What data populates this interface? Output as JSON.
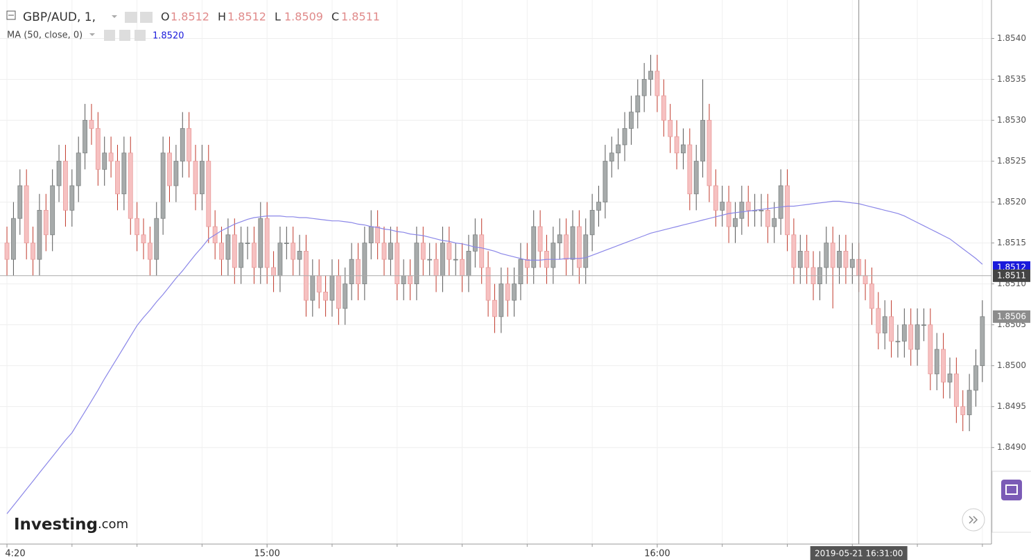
{
  "chart_data": {
    "type": "candlestick",
    "symbol": "GBP/AUD, 1,",
    "ohlc_legend": [
      {
        "key": "O",
        "value": 1.8512
      },
      {
        "key": "H",
        "value": 1.8512
      },
      {
        "key": "L",
        "value": 1.8509
      },
      {
        "key": "C",
        "value": 1.8511
      }
    ],
    "up_color": "#a7abab",
    "down_color": "#f6c1c1",
    "open": [
      1.8515,
      1.8513,
      1.8518,
      1.8522,
      1.8515,
      1.8513,
      1.8519,
      1.8516,
      1.8522,
      1.8525,
      1.8519,
      1.8522,
      1.8526,
      1.853,
      1.8529,
      1.8524,
      1.8526,
      1.8525,
      1.8521,
      1.8526,
      1.8518,
      1.8516,
      1.8515,
      1.8513,
      1.8518,
      1.8526,
      1.8522,
      1.8525,
      1.8529,
      1.8525,
      1.8521,
      1.8525,
      1.8517,
      1.8515,
      1.8513,
      1.8516,
      1.8512,
      1.8515,
      1.8515,
      1.8512,
      1.8518,
      1.8512,
      1.8511,
      1.8515,
      1.8515,
      1.8513,
      1.8514,
      1.8508,
      1.8511,
      1.8509,
      1.8508,
      1.8511,
      1.8507,
      1.851,
      1.8513,
      1.851,
      1.8515,
      1.8517,
      1.8515,
      1.8513,
      1.8515,
      1.851,
      1.8511,
      1.851,
      1.8515,
      1.8513,
      1.8513,
      1.8511,
      1.8515,
      1.8513,
      1.8513,
      1.8511,
      1.8514,
      1.8516,
      1.8512,
      1.8508,
      1.8506,
      1.851,
      1.8508,
      1.851,
      1.8513,
      1.8512,
      1.8517,
      1.8514,
      1.8512,
      1.8515,
      1.8516,
      1.8513,
      1.8517,
      1.8512,
      1.8516,
      1.8519,
      1.852,
      1.8525,
      1.8526,
      1.8527,
      1.8529,
      1.8531,
      1.8533,
      1.8535,
      1.8536,
      1.8533,
      1.853,
      1.8528,
      1.8526,
      1.8527,
      1.8521,
      1.8525,
      1.853,
      1.8522,
      1.8519,
      1.852,
      1.8517,
      1.8518,
      1.852,
      1.8519,
      1.8519,
      1.8519,
      1.8517,
      1.8518,
      1.8522,
      1.8516,
      1.8512,
      1.8514,
      1.8512,
      1.851,
      1.8512,
      1.8515,
      1.8512,
      1.8514,
      1.8512,
      1.8513,
      1.8511,
      1.851,
      1.8507,
      1.8504,
      1.8506,
      1.8503,
      1.8503,
      1.8505,
      1.8502,
      1.8505,
      1.8505,
      1.8499,
      1.8502,
      1.8498,
      1.8499,
      1.8495,
      1.8494,
      1.8497,
      1.85
    ],
    "high": [
      1.8517,
      1.852,
      1.8524,
      1.8524,
      1.8517,
      1.8521,
      1.8521,
      1.8524,
      1.8527,
      1.8527,
      1.8524,
      1.8528,
      1.8532,
      1.8532,
      1.8531,
      1.8528,
      1.8528,
      1.8527,
      1.8528,
      1.8528,
      1.852,
      1.8518,
      1.8517,
      1.852,
      1.8528,
      1.8528,
      1.8527,
      1.8531,
      1.8531,
      1.8527,
      1.8527,
      1.8527,
      1.8519,
      1.8517,
      1.8518,
      1.8518,
      1.8517,
      1.8517,
      1.8517,
      1.852,
      1.852,
      1.8514,
      1.8517,
      1.8517,
      1.8517,
      1.8516,
      1.8516,
      1.8513,
      1.8513,
      1.8511,
      1.8513,
      1.8513,
      1.8512,
      1.8515,
      1.8515,
      1.8517,
      1.8519,
      1.8519,
      1.8517,
      1.8517,
      1.8517,
      1.8513,
      1.8513,
      1.8517,
      1.8517,
      1.8515,
      1.8515,
      1.8517,
      1.8517,
      1.8515,
      1.8515,
      1.8516,
      1.8518,
      1.8518,
      1.8514,
      1.851,
      1.8512,
      1.8512,
      1.8512,
      1.8515,
      1.8515,
      1.8519,
      1.8519,
      1.8516,
      1.8517,
      1.8518,
      1.8518,
      1.8519,
      1.8519,
      1.8518,
      1.8521,
      1.8522,
      1.8527,
      1.8528,
      1.8529,
      1.8531,
      1.8533,
      1.8535,
      1.8537,
      1.8538,
      1.8538,
      1.8535,
      1.8532,
      1.853,
      1.8529,
      1.8529,
      1.8527,
      1.8535,
      1.8532,
      1.8524,
      1.8522,
      1.8522,
      1.852,
      1.8522,
      1.8522,
      1.8521,
      1.8521,
      1.8521,
      1.852,
      1.8524,
      1.8524,
      1.8518,
      1.8516,
      1.8516,
      1.8514,
      1.8514,
      1.8517,
      1.8517,
      1.8516,
      1.8516,
      1.8515,
      1.8515,
      1.8513,
      1.8512,
      1.8509,
      1.8508,
      1.8508,
      1.8505,
      1.8507,
      1.8507,
      1.8507,
      1.8507,
      1.8507,
      1.8504,
      1.8504,
      1.8501,
      1.8501,
      1.8497,
      1.8499,
      1.8502,
      1.8508
    ],
    "low": [
      1.8511,
      1.8511,
      1.8516,
      1.8513,
      1.8511,
      1.8511,
      1.8514,
      1.8514,
      1.852,
      1.8517,
      1.8517,
      1.852,
      1.8524,
      1.8527,
      1.8522,
      1.8522,
      1.8523,
      1.8519,
      1.8519,
      1.8516,
      1.8514,
      1.8513,
      1.8511,
      1.8511,
      1.8516,
      1.852,
      1.852,
      1.8523,
      1.8523,
      1.8519,
      1.8519,
      1.8515,
      1.8513,
      1.8511,
      1.8511,
      1.851,
      1.851,
      1.8513,
      1.851,
      1.851,
      1.851,
      1.8509,
      1.8509,
      1.8513,
      1.8511,
      1.8511,
      1.8506,
      1.8506,
      1.8507,
      1.8506,
      1.8506,
      1.8505,
      1.8505,
      1.8508,
      1.8508,
      1.8508,
      1.8513,
      1.8513,
      1.8511,
      1.8511,
      1.8508,
      1.8508,
      1.8508,
      1.8508,
      1.8511,
      1.8511,
      1.8509,
      1.8509,
      1.8511,
      1.8511,
      1.8509,
      1.8509,
      1.8512,
      1.851,
      1.8506,
      1.8504,
      1.8504,
      1.8506,
      1.8506,
      1.8508,
      1.851,
      1.851,
      1.8512,
      1.851,
      1.851,
      1.8513,
      1.8511,
      1.8511,
      1.851,
      1.851,
      1.8514,
      1.8517,
      1.8518,
      1.8523,
      1.8524,
      1.8525,
      1.8527,
      1.8529,
      1.8531,
      1.8533,
      1.8531,
      1.8528,
      1.8526,
      1.8524,
      1.8524,
      1.8519,
      1.8519,
      1.8523,
      1.852,
      1.8517,
      1.8517,
      1.8515,
      1.8515,
      1.8516,
      1.8517,
      1.8517,
      1.8517,
      1.8515,
      1.8515,
      1.8516,
      1.8514,
      1.851,
      1.851,
      1.851,
      1.8508,
      1.8508,
      1.851,
      1.8507,
      1.851,
      1.851,
      1.851,
      1.8509,
      1.8508,
      1.8505,
      1.8502,
      1.8502,
      1.8501,
      1.8501,
      1.8501,
      1.85,
      1.85,
      1.8503,
      1.8497,
      1.8497,
      1.8496,
      1.8496,
      1.8493,
      1.8492,
      1.8492,
      1.8495,
      1.8498
    ],
    "close": [
      1.8513,
      1.8518,
      1.8522,
      1.8515,
      1.8513,
      1.8519,
      1.8516,
      1.8522,
      1.8525,
      1.8519,
      1.8522,
      1.8526,
      1.853,
      1.8529,
      1.8524,
      1.8526,
      1.8525,
      1.8521,
      1.8526,
      1.8518,
      1.8516,
      1.8515,
      1.8513,
      1.8518,
      1.8526,
      1.8522,
      1.8525,
      1.8529,
      1.8525,
      1.8521,
      1.8525,
      1.8517,
      1.8515,
      1.8513,
      1.8516,
      1.8512,
      1.8515,
      1.8515,
      1.8512,
      1.8518,
      1.8512,
      1.8511,
      1.8515,
      1.8515,
      1.8513,
      1.8514,
      1.8508,
      1.8511,
      1.8509,
      1.8508,
      1.8511,
      1.8507,
      1.851,
      1.8513,
      1.851,
      1.8515,
      1.8517,
      1.8515,
      1.8513,
      1.8515,
      1.851,
      1.8511,
      1.851,
      1.8515,
      1.8513,
      1.8513,
      1.8511,
      1.8515,
      1.8513,
      1.8513,
      1.8511,
      1.8514,
      1.8516,
      1.8512,
      1.8508,
      1.8506,
      1.851,
      1.8508,
      1.851,
      1.8513,
      1.8512,
      1.8517,
      1.8514,
      1.8512,
      1.8515,
      1.8516,
      1.8513,
      1.8517,
      1.8512,
      1.8516,
      1.8519,
      1.852,
      1.8525,
      1.8526,
      1.8527,
      1.8529,
      1.8531,
      1.8533,
      1.8535,
      1.8536,
      1.8533,
      1.853,
      1.8528,
      1.8526,
      1.8527,
      1.8521,
      1.8525,
      1.853,
      1.8522,
      1.8519,
      1.852,
      1.8517,
      1.8518,
      1.852,
      1.8519,
      1.8519,
      1.8519,
      1.8517,
      1.8518,
      1.8522,
      1.8516,
      1.8512,
      1.8514,
      1.8512,
      1.851,
      1.8512,
      1.8515,
      1.8512,
      1.8514,
      1.8512,
      1.8513,
      1.8511,
      1.851,
      1.8507,
      1.8504,
      1.8506,
      1.8503,
      1.8503,
      1.8505,
      1.8502,
      1.8505,
      1.8505,
      1.8499,
      1.8502,
      1.8498,
      1.8499,
      1.8495,
      1.8494,
      1.8497,
      1.85,
      1.8506
    ],
    "ma": {
      "name": "MA (50, close, 0)",
      "value_label": "1.8520",
      "color": "#8a86e8",
      "values": [
        1.84819,
        1.84829,
        1.84839,
        1.84849,
        1.84859,
        1.84869,
        1.84879,
        1.84889,
        1.84899,
        1.84909,
        1.84918,
        1.84931,
        1.84944,
        1.84957,
        1.8497,
        1.84984,
        1.84997,
        1.8501,
        1.85023,
        1.85036,
        1.85049,
        1.85059,
        1.85068,
        1.85078,
        1.85087,
        1.85097,
        1.85107,
        1.85116,
        1.85126,
        1.85136,
        1.85145,
        1.85155,
        1.8516,
        1.85165,
        1.85169,
        1.85173,
        1.85176,
        1.85179,
        1.85181,
        1.85182,
        1.85183,
        1.85183,
        1.85183,
        1.85182,
        1.85182,
        1.85181,
        1.85181,
        1.8518,
        1.85179,
        1.85178,
        1.85177,
        1.85177,
        1.85176,
        1.85175,
        1.85173,
        1.85172,
        1.8517,
        1.85169,
        1.85167,
        1.85166,
        1.85164,
        1.85163,
        1.85161,
        1.8516,
        1.85159,
        1.85157,
        1.85155,
        1.85153,
        1.85152,
        1.8515,
        1.85149,
        1.85147,
        1.85145,
        1.85144,
        1.85142,
        1.8514,
        1.85137,
        1.85135,
        1.85133,
        1.85131,
        1.85129,
        1.85129,
        1.85129,
        1.8513,
        1.8513,
        1.8513,
        1.85131,
        1.85131,
        1.85131,
        1.85132,
        1.85135,
        1.85138,
        1.85141,
        1.85144,
        1.85147,
        1.8515,
        1.85153,
        1.85156,
        1.85159,
        1.85162,
        1.85164,
        1.85166,
        1.85168,
        1.8517,
        1.85172,
        1.85174,
        1.85176,
        1.85178,
        1.8518,
        1.85182,
        1.85184,
        1.85186,
        1.85187,
        1.85188,
        1.85189,
        1.8519,
        1.85191,
        1.85192,
        1.85193,
        1.85194,
        1.85195,
        1.85195,
        1.85196,
        1.85197,
        1.85198,
        1.85199,
        1.852,
        1.85201,
        1.85201,
        1.852,
        1.85199,
        1.85198,
        1.85196,
        1.85194,
        1.85192,
        1.8519,
        1.85188,
        1.85186,
        1.85183,
        1.85179,
        1.85175,
        1.85171,
        1.85167,
        1.85163,
        1.85159,
        1.85155,
        1.85149,
        1.85143,
        1.85137,
        1.85131,
        1.85124
      ]
    },
    "xlim": [
      -1.07,
      151.4
    ],
    "xticks": [
      {
        "value": 0,
        "label": "4:20"
      },
      {
        "value": 40,
        "label": "15:00"
      },
      {
        "value": 100,
        "label": "16:00"
      }
    ],
    "ylim": [
      1.84782,
      1.85447
    ],
    "yticks": [
      {
        "value": 1.849,
        "label": "1.8490"
      },
      {
        "value": 1.8495,
        "label": "1.8495"
      },
      {
        "value": 1.85,
        "label": "1.8500"
      },
      {
        "value": 1.8505,
        "label": "1.8505"
      },
      {
        "value": 1.851,
        "label": "1.8510"
      },
      {
        "value": 1.8515,
        "label": "1.8515"
      },
      {
        "value": 1.852,
        "label": "1.8520"
      },
      {
        "value": 1.8525,
        "label": "1.8525"
      },
      {
        "value": 1.853,
        "label": "1.8530"
      },
      {
        "value": 1.8535,
        "label": "1.8535"
      },
      {
        "value": 1.854,
        "label": "1.8540"
      }
    ],
    "grid": true,
    "crosshair": {
      "x": {
        "value": 131,
        "label": "2019-05-21 16:31:00"
      },
      "y": 1.8511
    },
    "price_badges": [
      {
        "value": 1.8512,
        "color": "#1a1adb"
      },
      {
        "value": 1.8506,
        "color": "#8c8c8c"
      }
    ],
    "brand": {
      "name": "Investing",
      "suffix": ".com"
    }
  }
}
